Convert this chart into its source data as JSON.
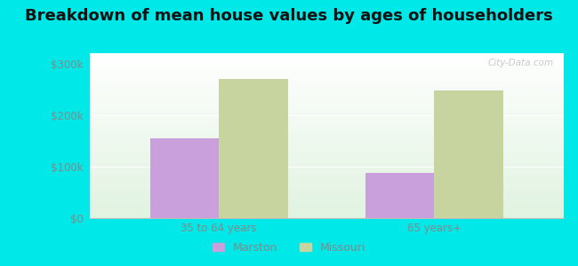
{
  "title": "Breakdown of mean house values by ages of householders",
  "categories": [
    "35 to 64 years",
    "65 years+"
  ],
  "marston_values": [
    155000,
    88000
  ],
  "missouri_values": [
    270000,
    247000
  ],
  "marston_color": "#c9a0dc",
  "missouri_color": "#c8d4a0",
  "background_color": "#00e8e8",
  "plot_bg_top": "#d8eed8",
  "plot_bg_bottom": "#f0faf0",
  "ylim": [
    0,
    320000
  ],
  "yticks": [
    0,
    100000,
    200000,
    300000
  ],
  "ytick_labels": [
    "$0",
    "$100k",
    "$200k",
    "$300k"
  ],
  "bar_width": 0.32,
  "title_fontsize": 13,
  "legend_labels": [
    "Marston",
    "Missouri"
  ],
  "watermark": "City-Data.com",
  "tick_color": "#888888",
  "tick_fontsize": 8.5
}
